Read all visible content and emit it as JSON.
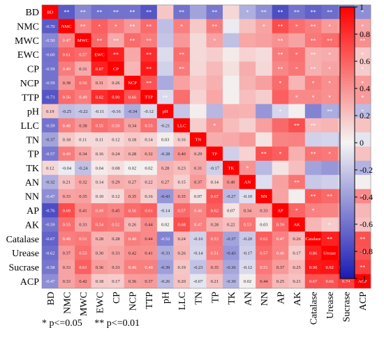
{
  "chart_data": {
    "type": "heatmap",
    "variables": [
      "BD",
      "NMC",
      "MWC",
      "EWC",
      "CP",
      "NCP",
      "TTP",
      "pH",
      "LLC",
      "TN",
      "TP",
      "TK",
      "AN",
      "NN",
      "AP",
      "AK",
      "Catalase",
      "Urease",
      "Sucrase",
      "ACP"
    ],
    "lower_triangle_labels": [
      [],
      [
        "-0.70"
      ],
      [
        "-0.50",
        "0.47"
      ],
      [
        "-0.60",
        "0.61",
        "0.57"
      ],
      [
        "-0.59",
        "0.49",
        "0.31",
        "0.87"
      ],
      [
        "-0.59",
        "0.38",
        "0.56",
        "0.31",
        "0.26"
      ],
      [
        "-0.73",
        "0.56",
        "0.49",
        "0.82",
        "0.90",
        "0.66"
      ],
      [
        "0.19",
        "-0.25",
        "-0.22",
        "-0.11",
        "-0.16",
        "-0.34",
        "-0.12"
      ],
      [
        "-0.59",
        "0.48",
        "0.38",
        "0.55",
        "0.50",
        "0.34",
        "0.55",
        "-0.21"
      ],
      [
        "-0.37",
        "0.18",
        "0.11",
        "0.11",
        "0.12",
        "0.18",
        "0.14",
        "0.03",
        "0.16"
      ],
      [
        "-0.57",
        "0.49",
        "0.34",
        "0.16",
        "0.24",
        "0.28",
        "0.32",
        "-0.28",
        "0.40",
        "0.29"
      ],
      [
        "0.12",
        "-0.04",
        "-0.24",
        "0.04",
        "0.08",
        "0.02",
        "0.02",
        "0.28",
        "0.23",
        "0.31",
        "-0.17"
      ],
      [
        "-0.32",
        "0.21",
        "0.32",
        "0.14",
        "0.29",
        "0.27",
        "0.22",
        "0.27",
        "0.15",
        "0.37",
        "0.14",
        "0.40"
      ],
      [
        "-0.47",
        "0.33",
        "0.35",
        "0.10",
        "0.12",
        "0.35",
        "0.16",
        "-0.43",
        "0.35",
        "0.07",
        "0.67",
        "-0.27",
        "-0.10"
      ],
      [
        "-0.76",
        "0.69",
        "0.41",
        "0.49",
        "0.45",
        "0.56",
        "0.61",
        "-0.14",
        "0.57",
        "0.46",
        "0.62",
        "0.07",
        "0.34",
        "0.33"
      ],
      [
        "-0.59",
        "0.55",
        "0.33",
        "0.54",
        "0.52",
        "0.26",
        "0.44",
        "0.02",
        "0.68",
        "0.47",
        "0.28",
        "0.22",
        "0.53",
        "0.03",
        "0.59"
      ],
      [
        "-0.67",
        "0.48",
        "0.51",
        "0.28",
        "0.28",
        "0.48",
        "0.44",
        "-0.52",
        "0.24",
        "-0.16",
        "0.53",
        "-0.37",
        "-0.20",
        "0.62",
        "0.47",
        "0.26"
      ],
      [
        "-0.62",
        "0.37",
        "0.55",
        "0.30",
        "0.33",
        "0.42",
        "0.41",
        "-0.33",
        "0.26",
        "-0.14",
        "0.51",
        "-0.43",
        "-0.17",
        "0.57",
        "0.46",
        "0.17",
        "0.86"
      ],
      [
        "-0.58",
        "0.33",
        "0.61",
        "0.36",
        "0.33",
        "0.48",
        "0.48",
        "-0.39",
        "0.19",
        "-0.23",
        "0.35",
        "-0.36",
        "-0.12",
        "0.51",
        "0.37",
        "0.25",
        "0.90",
        "0.92"
      ],
      [
        "-0.47",
        "0.33",
        "0.42",
        "0.18",
        "0.17",
        "0.36",
        "0.37",
        "-0.26",
        "0.20",
        "-0.07",
        "0.21",
        "-0.30",
        "0.02",
        "0.44",
        "0.25",
        "0.21",
        "0.67",
        "0.66",
        "0.74"
      ]
    ],
    "upper_triangle_significance": [
      [
        "**",
        "**",
        "**",
        "**",
        "**",
        "**",
        "",
        "**",
        "",
        "**",
        "",
        "*",
        "**",
        "**",
        "**",
        "**",
        "**",
        "**",
        "*"
      ],
      [
        "**",
        "*",
        "*",
        "**",
        "**",
        "",
        "*",
        "",
        "**",
        "",
        "",
        "*",
        "**",
        "*",
        "**",
        "*",
        "*",
        "*"
      ],
      [
        "**",
        "**",
        "**",
        "**",
        "",
        "",
        "",
        "*",
        "",
        "",
        "",
        "**",
        "",
        "**",
        "**",
        "**",
        "**"
      ],
      [
        "**",
        "",
        "**",
        "",
        "**",
        "",
        "",
        "",
        "",
        "",
        "**",
        "*",
        "**",
        "*",
        "*",
        "*"
      ],
      [
        "",
        "**",
        "",
        "**",
        "",
        "",
        "",
        "",
        "",
        "**",
        "*",
        "**",
        "*",
        "*",
        "*"
      ],
      [
        "**",
        "",
        "",
        "",
        "",
        "",
        "",
        "",
        "*",
        "",
        "*",
        "*",
        "*",
        "*"
      ],
      [
        "**",
        "",
        "",
        "",
        "",
        "",
        "",
        "",
        "*",
        "*",
        "*",
        "*",
        "*"
      ],
      [
        "",
        "",
        "",
        "",
        "",
        "",
        "*",
        "",
        "",
        "**",
        "*",
        "*",
        ""
      ],
      [
        "",
        "*",
        "",
        "",
        "",
        "",
        "**",
        "**",
        "",
        "",
        ""
      ],
      [
        "",
        "",
        "",
        "",
        "",
        "",
        "",
        "",
        ""
      ],
      [
        "",
        "",
        "**",
        "*",
        "",
        "**",
        "*",
        "",
        ""
      ],
      [
        "*",
        "",
        "",
        "",
        "",
        "",
        "",
        ""
      ],
      [
        "",
        "",
        "**",
        "",
        "",
        "",
        ""
      ],
      [
        "",
        "",
        "**",
        "**",
        "**",
        "*"
      ],
      [
        "*",
        "*",
        "",
        "",
        ""
      ],
      [
        "",
        "*",
        "",
        ""
      ],
      [
        "**",
        "**",
        "**"
      ],
      [
        "**",
        "**"
      ],
      [
        "**"
      ]
    ],
    "colorbar": {
      "ticks": [
        "1",
        "0.8",
        "0.6",
        "0.4",
        "0.2",
        "0",
        "-0.2",
        "-0.4",
        "-0.6",
        "-0.8",
        "-1"
      ],
      "colors": {
        "positive": "#ff0000",
        "zero": "#f4f4f4",
        "negative": "#1a1ab4"
      }
    },
    "footnote": [
      "* p<=0.05",
      "** p<=0.01"
    ]
  }
}
